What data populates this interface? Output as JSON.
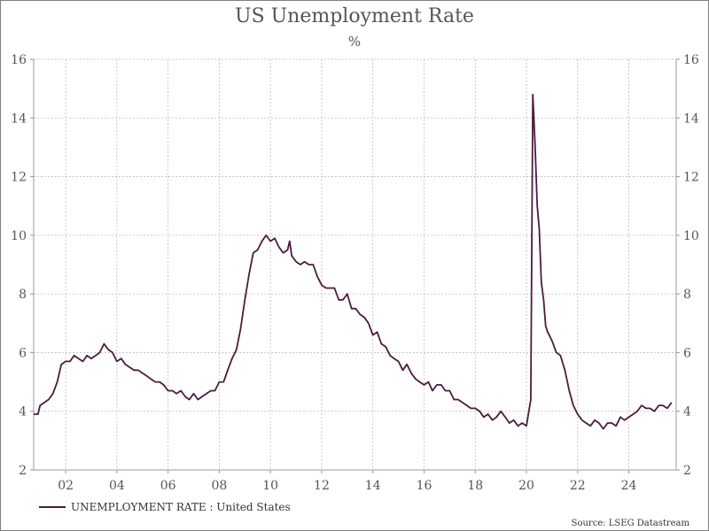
{
  "chart_data": {
    "type": "line",
    "title": "US Unemployment Rate",
    "subtitle": "%",
    "xlim": [
      2000.75,
      2025.85
    ],
    "ylim": [
      2,
      16
    ],
    "yticks": [
      2,
      4,
      6,
      8,
      10,
      12,
      14,
      16
    ],
    "xticks": [
      {
        "value": 2002,
        "label": "02"
      },
      {
        "value": 2004,
        "label": "04"
      },
      {
        "value": 2006,
        "label": "06"
      },
      {
        "value": 2008,
        "label": "08"
      },
      {
        "value": 2010,
        "label": "10"
      },
      {
        "value": 2012,
        "label": "12"
      },
      {
        "value": 2014,
        "label": "14"
      },
      {
        "value": 2016,
        "label": "16"
      },
      {
        "value": 2018,
        "label": "18"
      },
      {
        "value": 2020,
        "label": "20"
      },
      {
        "value": 2022,
        "label": "22"
      },
      {
        "value": 2024,
        "label": "24"
      }
    ],
    "grid": true,
    "legend_position": "bottom-left",
    "series": [
      {
        "name": "UNEMPLOYMENT RATE : United States",
        "color": "#4b1c3e",
        "points": [
          [
            2000.75,
            3.9
          ],
          [
            2000.92,
            3.9
          ],
          [
            2001.0,
            4.2
          ],
          [
            2001.17,
            4.3
          ],
          [
            2001.33,
            4.4
          ],
          [
            2001.5,
            4.6
          ],
          [
            2001.67,
            5.0
          ],
          [
            2001.83,
            5.6
          ],
          [
            2002.0,
            5.7
          ],
          [
            2002.17,
            5.7
          ],
          [
            2002.33,
            5.9
          ],
          [
            2002.5,
            5.8
          ],
          [
            2002.67,
            5.7
          ],
          [
            2002.83,
            5.9
          ],
          [
            2003.0,
            5.8
          ],
          [
            2003.17,
            5.9
          ],
          [
            2003.33,
            6.0
          ],
          [
            2003.5,
            6.3
          ],
          [
            2003.67,
            6.1
          ],
          [
            2003.83,
            6.0
          ],
          [
            2004.0,
            5.7
          ],
          [
            2004.17,
            5.8
          ],
          [
            2004.33,
            5.6
          ],
          [
            2004.5,
            5.5
          ],
          [
            2004.67,
            5.4
          ],
          [
            2004.83,
            5.4
          ],
          [
            2005.0,
            5.3
          ],
          [
            2005.17,
            5.2
          ],
          [
            2005.33,
            5.1
          ],
          [
            2005.5,
            5.0
          ],
          [
            2005.67,
            5.0
          ],
          [
            2005.83,
            4.9
          ],
          [
            2006.0,
            4.7
          ],
          [
            2006.17,
            4.7
          ],
          [
            2006.33,
            4.6
          ],
          [
            2006.5,
            4.7
          ],
          [
            2006.67,
            4.5
          ],
          [
            2006.83,
            4.4
          ],
          [
            2007.0,
            4.6
          ],
          [
            2007.17,
            4.4
          ],
          [
            2007.33,
            4.5
          ],
          [
            2007.5,
            4.6
          ],
          [
            2007.67,
            4.7
          ],
          [
            2007.83,
            4.7
          ],
          [
            2008.0,
            5.0
          ],
          [
            2008.17,
            5.0
          ],
          [
            2008.33,
            5.4
          ],
          [
            2008.5,
            5.8
          ],
          [
            2008.67,
            6.1
          ],
          [
            2008.83,
            6.8
          ],
          [
            2009.0,
            7.8
          ],
          [
            2009.17,
            8.7
          ],
          [
            2009.33,
            9.4
          ],
          [
            2009.5,
            9.5
          ],
          [
            2009.67,
            9.8
          ],
          [
            2009.83,
            10.0
          ],
          [
            2010.0,
            9.8
          ],
          [
            2010.17,
            9.9
          ],
          [
            2010.33,
            9.6
          ],
          [
            2010.5,
            9.4
          ],
          [
            2010.67,
            9.5
          ],
          [
            2010.75,
            9.8
          ],
          [
            2010.83,
            9.3
          ],
          [
            2011.0,
            9.1
          ],
          [
            2011.17,
            9.0
          ],
          [
            2011.33,
            9.1
          ],
          [
            2011.5,
            9.0
          ],
          [
            2011.67,
            9.0
          ],
          [
            2011.83,
            8.6
          ],
          [
            2012.0,
            8.3
          ],
          [
            2012.17,
            8.2
          ],
          [
            2012.33,
            8.2
          ],
          [
            2012.5,
            8.2
          ],
          [
            2012.67,
            7.8
          ],
          [
            2012.83,
            7.8
          ],
          [
            2013.0,
            8.0
          ],
          [
            2013.17,
            7.5
          ],
          [
            2013.33,
            7.5
          ],
          [
            2013.5,
            7.3
          ],
          [
            2013.67,
            7.2
          ],
          [
            2013.83,
            7.0
          ],
          [
            2014.0,
            6.6
          ],
          [
            2014.17,
            6.7
          ],
          [
            2014.33,
            6.3
          ],
          [
            2014.5,
            6.2
          ],
          [
            2014.67,
            5.9
          ],
          [
            2014.83,
            5.8
          ],
          [
            2015.0,
            5.7
          ],
          [
            2015.17,
            5.4
          ],
          [
            2015.33,
            5.6
          ],
          [
            2015.5,
            5.3
          ],
          [
            2015.67,
            5.1
          ],
          [
            2015.83,
            5.0
          ],
          [
            2016.0,
            4.9
          ],
          [
            2016.17,
            5.0
          ],
          [
            2016.33,
            4.7
          ],
          [
            2016.5,
            4.9
          ],
          [
            2016.67,
            4.9
          ],
          [
            2016.83,
            4.7
          ],
          [
            2017.0,
            4.7
          ],
          [
            2017.17,
            4.4
          ],
          [
            2017.33,
            4.4
          ],
          [
            2017.5,
            4.3
          ],
          [
            2017.67,
            4.2
          ],
          [
            2017.83,
            4.1
          ],
          [
            2018.0,
            4.1
          ],
          [
            2018.17,
            4.0
          ],
          [
            2018.33,
            3.8
          ],
          [
            2018.5,
            3.9
          ],
          [
            2018.67,
            3.7
          ],
          [
            2018.83,
            3.8
          ],
          [
            2019.0,
            4.0
          ],
          [
            2019.17,
            3.8
          ],
          [
            2019.33,
            3.6
          ],
          [
            2019.5,
            3.7
          ],
          [
            2019.67,
            3.5
          ],
          [
            2019.83,
            3.6
          ],
          [
            2020.0,
            3.5
          ],
          [
            2020.17,
            4.4
          ],
          [
            2020.25,
            14.8
          ],
          [
            2020.33,
            13.2
          ],
          [
            2020.42,
            11.0
          ],
          [
            2020.5,
            10.2
          ],
          [
            2020.58,
            8.4
          ],
          [
            2020.67,
            7.8
          ],
          [
            2020.75,
            6.9
          ],
          [
            2020.83,
            6.7
          ],
          [
            2021.0,
            6.4
          ],
          [
            2021.17,
            6.0
          ],
          [
            2021.33,
            5.9
          ],
          [
            2021.5,
            5.4
          ],
          [
            2021.67,
            4.7
          ],
          [
            2021.83,
            4.2
          ],
          [
            2022.0,
            3.9
          ],
          [
            2022.17,
            3.7
          ],
          [
            2022.33,
            3.6
          ],
          [
            2022.5,
            3.5
          ],
          [
            2022.67,
            3.7
          ],
          [
            2022.83,
            3.6
          ],
          [
            2023.0,
            3.4
          ],
          [
            2023.17,
            3.6
          ],
          [
            2023.33,
            3.6
          ],
          [
            2023.5,
            3.5
          ],
          [
            2023.67,
            3.8
          ],
          [
            2023.83,
            3.7
          ],
          [
            2024.0,
            3.8
          ],
          [
            2024.17,
            3.9
          ],
          [
            2024.33,
            4.0
          ],
          [
            2024.5,
            4.2
          ],
          [
            2024.67,
            4.1
          ],
          [
            2024.83,
            4.1
          ],
          [
            2025.0,
            4.0
          ],
          [
            2025.17,
            4.2
          ],
          [
            2025.33,
            4.2
          ],
          [
            2025.5,
            4.1
          ],
          [
            2025.67,
            4.3
          ]
        ]
      }
    ],
    "source": "Source: LSEG Datastream"
  }
}
